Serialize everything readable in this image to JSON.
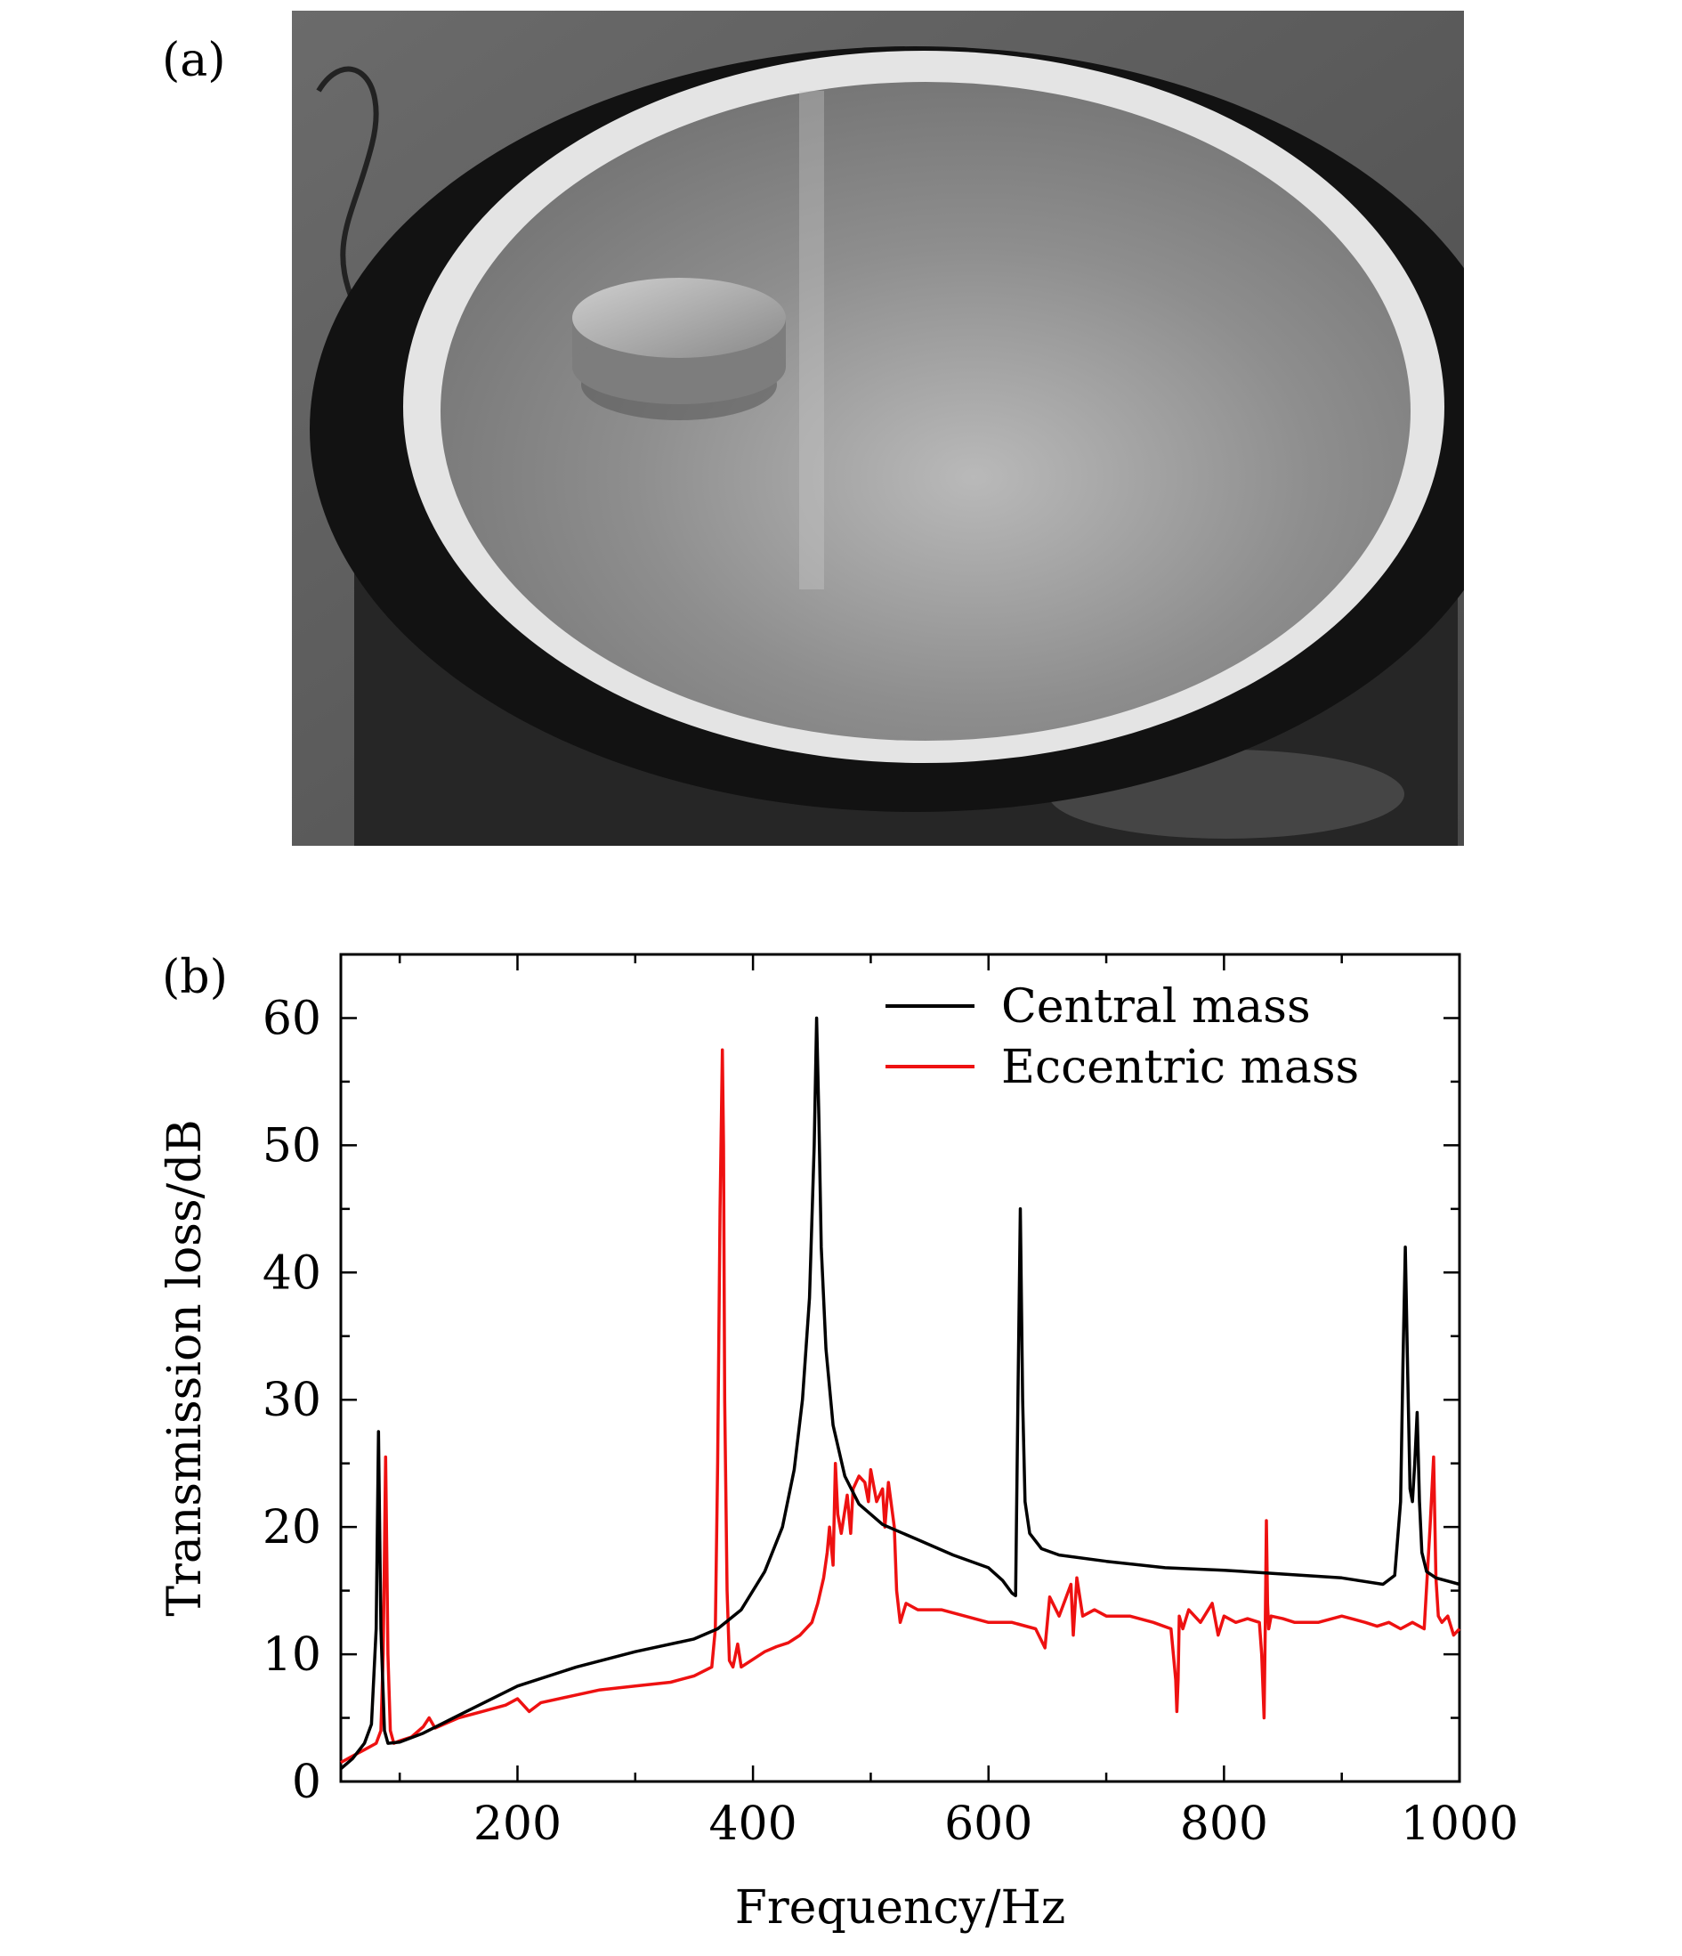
{
  "panels": {
    "a": {
      "label": "(a)"
    },
    "b": {
      "label": "(b)"
    }
  },
  "photo": {
    "subject": "membrane-with-eccentric-mass-photo",
    "colors": {
      "background": "#5e5e5e",
      "ring": "#141414",
      "membrane": "#8c8c8c",
      "adhesive": "#e6e6e6",
      "mass": "#b0b0b0"
    }
  },
  "chart_data": {
    "type": "line",
    "title": "",
    "xlabel": "Frequency/Hz",
    "ylabel": "Transmission loss/dB",
    "xlim": [
      50,
      1000
    ],
    "ylim": [
      0,
      65
    ],
    "xticks": [
      200,
      400,
      600,
      800,
      1000
    ],
    "yticks": [
      0,
      10,
      20,
      30,
      40,
      50,
      60
    ],
    "grid": false,
    "legend_position": "top-right",
    "series": [
      {
        "name": "Central mass",
        "color": "#000000",
        "x": [
          50,
          60,
          70,
          76,
          80,
          82,
          84,
          87,
          90,
          100,
          120,
          150,
          200,
          250,
          300,
          350,
          370,
          390,
          410,
          425,
          435,
          442,
          448,
          452,
          454,
          456,
          458,
          462,
          468,
          478,
          490,
          510,
          540,
          570,
          600,
          612,
          620,
          623,
          625,
          627,
          629,
          631,
          635,
          645,
          660,
          700,
          750,
          800,
          850,
          900,
          935,
          945,
          950,
          952,
          954,
          956,
          958,
          960,
          962,
          964,
          966,
          968,
          972,
          980,
          1000
        ],
        "y": [
          1.0,
          1.8,
          3.0,
          4.5,
          12.0,
          27.5,
          12.0,
          4.0,
          3.0,
          3.1,
          3.8,
          5.2,
          7.5,
          9.0,
          10.2,
          11.2,
          12.0,
          13.5,
          16.5,
          20.0,
          24.5,
          30.0,
          38.0,
          50.0,
          60.0,
          52.0,
          42.0,
          34.0,
          28.0,
          24.0,
          21.8,
          20.2,
          19.0,
          17.8,
          16.8,
          15.8,
          14.8,
          14.6,
          30.0,
          45.0,
          30.0,
          22.0,
          19.5,
          18.3,
          17.8,
          17.3,
          16.8,
          16.6,
          16.3,
          16.0,
          15.5,
          16.2,
          22.0,
          33.0,
          42.0,
          32.0,
          23.0,
          22.0,
          25.0,
          29.0,
          22.0,
          18.0,
          16.5,
          16.0,
          15.5
        ]
      },
      {
        "name": "Eccentric mass",
        "color": "#ee1111",
        "x": [
          50,
          60,
          70,
          80,
          84,
          86,
          87,
          88,
          89,
          90,
          92,
          95,
          100,
          110,
          120,
          125,
          130,
          150,
          170,
          190,
          200,
          210,
          220,
          250,
          270,
          300,
          330,
          350,
          365,
          368,
          370,
          372,
          374,
          375,
          376,
          378,
          380,
          383,
          387,
          390,
          400,
          410,
          420,
          430,
          440,
          450,
          455,
          460,
          463,
          465,
          468,
          470,
          472,
          475,
          480,
          483,
          485,
          490,
          495,
          498,
          500,
          505,
          510,
          512,
          515,
          520,
          522,
          525,
          530,
          540,
          560,
          580,
          600,
          620,
          640,
          648,
          652,
          660,
          670,
          672,
          675,
          680,
          690,
          700,
          720,
          740,
          755,
          759,
          760,
          761,
          762,
          765,
          770,
          780,
          790,
          795,
          800,
          810,
          820,
          830,
          832,
          834,
          835,
          836,
          837,
          838,
          840,
          850,
          860,
          880,
          900,
          920,
          930,
          940,
          950,
          960,
          970,
          975,
          978,
          980,
          982,
          985,
          990,
          995,
          1000
        ],
        "y": [
          1.5,
          2.0,
          2.5,
          3.0,
          4.0,
          10.0,
          18.0,
          25.5,
          18.0,
          10.0,
          4.0,
          3.0,
          3.2,
          3.5,
          4.3,
          5.0,
          4.2,
          5.0,
          5.5,
          6.0,
          6.5,
          5.5,
          6.2,
          6.8,
          7.2,
          7.5,
          7.8,
          8.3,
          9.0,
          12.0,
          25.0,
          45.0,
          57.5,
          50.0,
          30.0,
          15.0,
          9.5,
          9.0,
          10.8,
          9.0,
          9.6,
          10.2,
          10.6,
          10.9,
          11.5,
          12.5,
          14.0,
          16.0,
          18.0,
          20.0,
          17.0,
          25.0,
          21.0,
          19.5,
          22.5,
          19.5,
          23.0,
          24.0,
          23.5,
          22.0,
          24.5,
          22.0,
          23.0,
          20.0,
          23.5,
          20.0,
          15.0,
          12.5,
          14.0,
          13.5,
          13.5,
          13.0,
          12.5,
          12.5,
          12.0,
          10.5,
          14.5,
          13.0,
          15.5,
          11.5,
          16.0,
          13.0,
          13.5,
          13.0,
          13.0,
          12.5,
          12.0,
          8.0,
          5.5,
          8.0,
          13.0,
          12.0,
          13.5,
          12.5,
          14.0,
          11.5,
          13.0,
          12.5,
          12.8,
          12.5,
          10.0,
          5.0,
          12.0,
          20.5,
          14.0,
          12.0,
          13.0,
          12.8,
          12.5,
          12.5,
          13.0,
          12.5,
          12.2,
          12.5,
          12.0,
          12.5,
          12.0,
          20.0,
          25.5,
          16.0,
          13.0,
          12.5,
          13.0,
          11.5,
          12.0
        ]
      }
    ]
  }
}
